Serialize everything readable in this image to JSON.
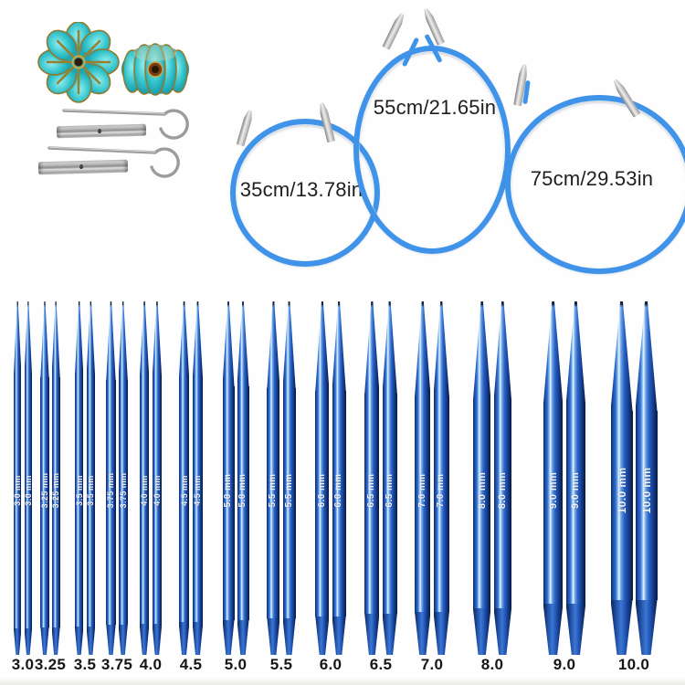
{
  "accessories": {
    "beads": [
      "flower-bead-front",
      "flower-bead-side"
    ],
    "tools": [
      "cable-key",
      "connector-tube",
      "cable-key",
      "connector-tube"
    ]
  },
  "cables": [
    {
      "label": "35cm/13.78in"
    },
    {
      "label": "55cm/21.65in"
    },
    {
      "label": "75cm/29.53in"
    }
  ],
  "needles": {
    "sizes": [
      "3.0",
      "3.25",
      "3.5",
      "3.75",
      "4.0",
      "4.5",
      "5.0",
      "5.5",
      "6.0",
      "6.5",
      "7.0",
      "8.0",
      "9.0",
      "10.0"
    ],
    "shaft_labels": [
      "3.0 mm",
      "3.25 mm",
      "3.5 mm",
      "3.75 mm",
      "4.0 mm",
      "4.5 mm",
      "5.0 mm",
      "5.5 mm",
      "6.0 mm",
      "6.5 mm",
      "7.0 mm",
      "8.0 mm",
      "9.0 mm",
      "10.0 mm"
    ]
  },
  "colors": {
    "cable_blue": "#3f93e8",
    "needle_blue": "#2a62c6",
    "needle_highlight": "#eef7fe",
    "needle_dark": "#0c2658",
    "bead_teal": "#25b7c2",
    "bead_gold": "#92792e",
    "metal_silver": "#c9c9c9",
    "label_text": "#1e1e1e",
    "background": "#fefefe"
  }
}
